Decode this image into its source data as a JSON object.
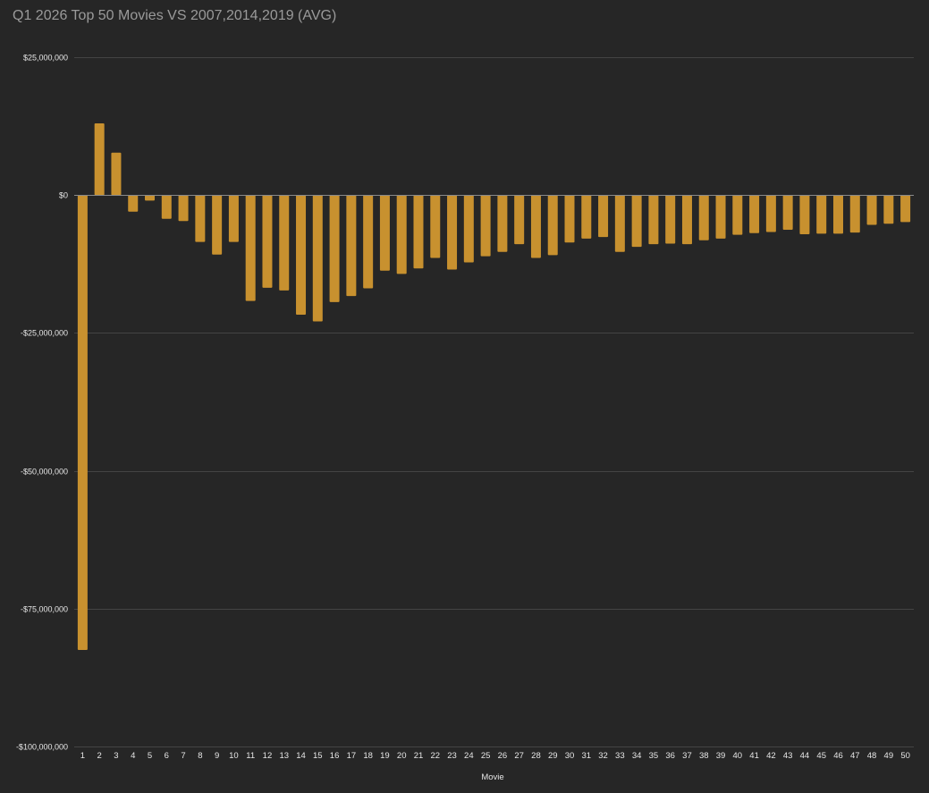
{
  "chart_data": {
    "type": "bar",
    "title": "Q1 2026 Top 50 Movies VS 2007,2014,2019 (AVG)",
    "xlabel": "Movie",
    "ylabel": "",
    "ylim": [
      -100000000,
      25000000
    ],
    "yticks": [
      {
        "value": 25000000,
        "label": "$25,000,000"
      },
      {
        "value": 0,
        "label": "$0"
      },
      {
        "value": -25000000,
        "label": "-$25,000,000"
      },
      {
        "value": -50000000,
        "label": "-$50,000,000"
      },
      {
        "value": -75000000,
        "label": "-$75,000,000"
      },
      {
        "value": -100000000,
        "label": "-$100,000,000"
      }
    ],
    "grid": true,
    "legend": "none",
    "colors": {
      "bar": "#c8912f",
      "background": "#262626",
      "grid": "#444444",
      "zero_line": "#8a8a8a",
      "title": "#9a9a9a",
      "text": "#e6e6e6"
    },
    "categories": [
      "1",
      "2",
      "3",
      "4",
      "5",
      "6",
      "7",
      "8",
      "9",
      "10",
      "11",
      "12",
      "13",
      "14",
      "15",
      "16",
      "17",
      "18",
      "19",
      "20",
      "21",
      "22",
      "23",
      "24",
      "25",
      "26",
      "27",
      "28",
      "29",
      "30",
      "31",
      "32",
      "33",
      "34",
      "35",
      "36",
      "37",
      "38",
      "39",
      "40",
      "41",
      "42",
      "43",
      "44",
      "45",
      "46",
      "47",
      "48",
      "49",
      "50"
    ],
    "values": [
      -82500000,
      13000000,
      7700000,
      -3000000,
      -1000000,
      -4300000,
      -4700000,
      -8500000,
      -10800000,
      -8500000,
      -19200000,
      -16800000,
      -17300000,
      -21700000,
      -22900000,
      -19400000,
      -18300000,
      -16900000,
      -13700000,
      -14300000,
      -13300000,
      -11400000,
      -13500000,
      -12200000,
      -11100000,
      -10300000,
      -8900000,
      -11400000,
      -10900000,
      -8600000,
      -7900000,
      -7600000,
      -10300000,
      -9400000,
      -8900000,
      -8800000,
      -8900000,
      -8200000,
      -7900000,
      -7200000,
      -6900000,
      -6700000,
      -6300000,
      -7100000,
      -7000000,
      -7000000,
      -6800000,
      -5400000,
      -5200000,
      -4900000
    ]
  }
}
